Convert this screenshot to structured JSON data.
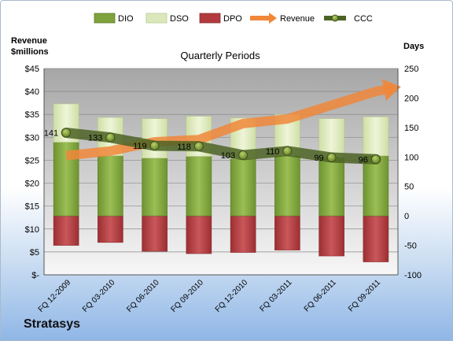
{
  "company": "Stratasys",
  "chart_data": {
    "type": "bar",
    "title": "Quarterly Periods",
    "y_left_label": [
      "Revenue",
      "$millions"
    ],
    "y_right_label": "Days",
    "y_left_range": [
      0,
      45
    ],
    "y_left_ticks": [
      "$-",
      "$5",
      "$10",
      "$15",
      "$20",
      "$25",
      "$30",
      "$35",
      "$40",
      "$45"
    ],
    "y_right_range": [
      -100,
      250
    ],
    "y_right_ticks": [
      "-100",
      "-50",
      "0",
      "50",
      "100",
      "150",
      "200",
      "250"
    ],
    "categories": [
      "FQ 12-2009",
      "FQ 03-2010",
      "FQ 06-2010",
      "FQ 09-2010",
      "FQ 12-2010",
      "FQ 03-2011",
      "FQ 06-2011",
      "FQ 09-2011"
    ],
    "legend_position": "top",
    "series": [
      {
        "name": "DIO",
        "axis": "right",
        "kind": "stacked-bar-positive",
        "color": "#7ea23c",
        "values": [
          125,
          102,
          98,
          101,
          97,
          102,
          99,
          102
        ]
      },
      {
        "name": "DSO",
        "axis": "right",
        "kind": "stacked-bar-positive",
        "color": "#dbe8bc",
        "values": [
          65,
          65,
          67,
          68,
          69,
          70,
          66,
          66
        ]
      },
      {
        "name": "DPO",
        "axis": "right",
        "kind": "bar-negative",
        "color": "#b23a3e",
        "values": [
          -50,
          -45,
          -60,
          -64,
          -62,
          -58,
          -68,
          -78
        ]
      },
      {
        "name": "Revenue",
        "axis": "left",
        "kind": "arrow",
        "color": "#f0873a",
        "values": [
          26,
          27,
          29,
          29.5,
          33,
          34,
          37,
          40
        ]
      },
      {
        "name": "CCC",
        "axis": "right",
        "kind": "line",
        "color": "#566e2a",
        "values": [
          141,
          133,
          119,
          118,
          103,
          110,
          99,
          96
        ],
        "labels": [
          "141",
          "133",
          "119",
          "118",
          "103",
          "110",
          "99",
          "96"
        ]
      }
    ]
  }
}
